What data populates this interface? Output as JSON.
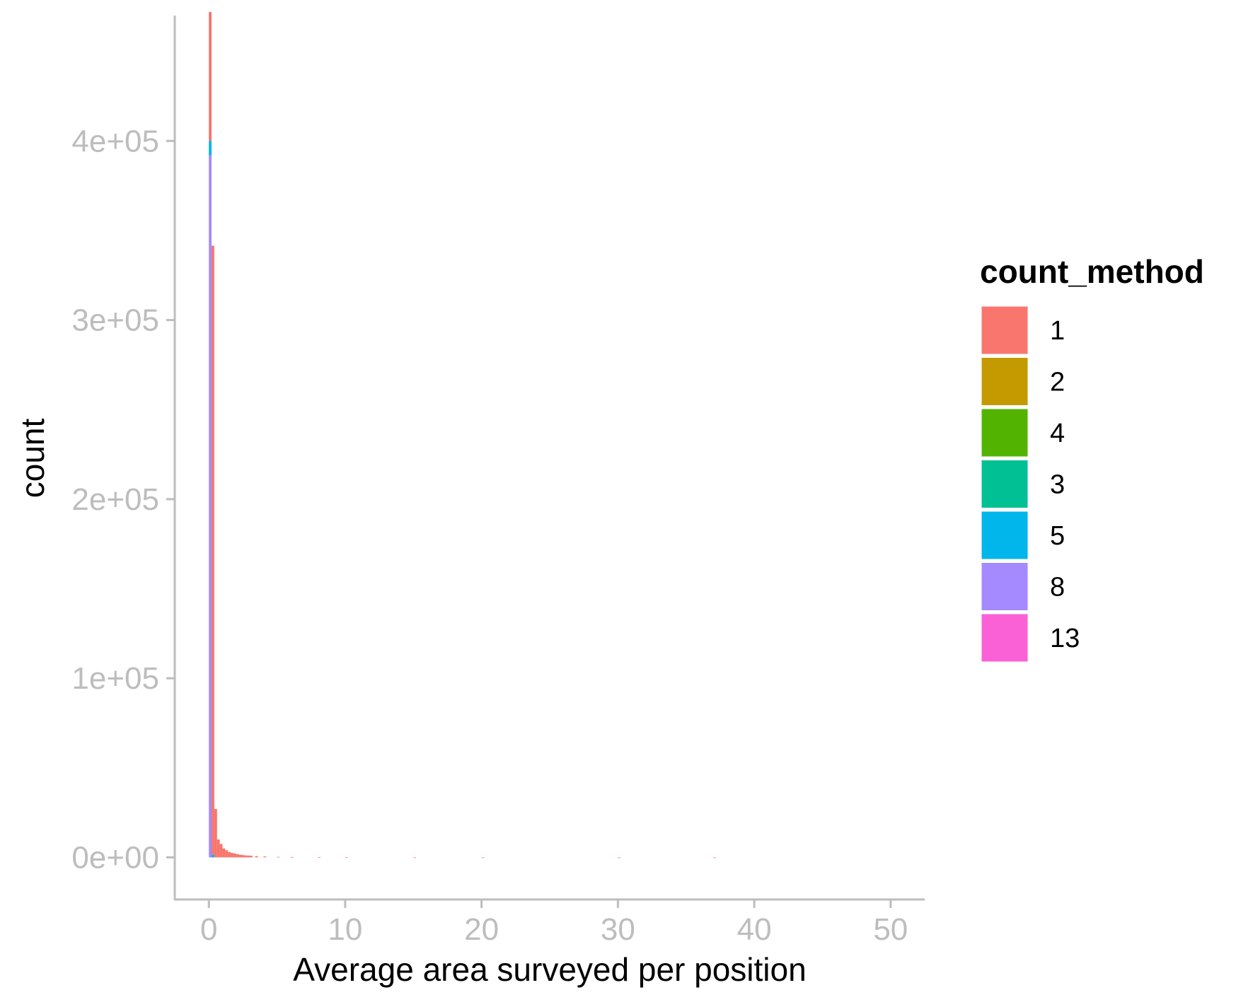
{
  "chart_data": {
    "type": "bar",
    "subtype": "stacked-histogram",
    "title": "",
    "xlabel": "Average area surveyed per position",
    "ylabel": "count",
    "xlim": [
      -2.5,
      52.5
    ],
    "ylim": [
      -23500,
      470000
    ],
    "x_ticks": [
      {
        "value": 0,
        "label": "0"
      },
      {
        "value": 10,
        "label": "10"
      },
      {
        "value": 20,
        "label": "20"
      },
      {
        "value": 30,
        "label": "30"
      },
      {
        "value": 40,
        "label": "40"
      },
      {
        "value": 50,
        "label": "50"
      }
    ],
    "y_ticks": [
      {
        "value": 0,
        "label": "0e+00"
      },
      {
        "value": 100000,
        "label": "1e+05"
      },
      {
        "value": 200000,
        "label": "2e+05"
      },
      {
        "value": 300000,
        "label": "3e+05"
      },
      {
        "value": 400000,
        "label": "4e+05"
      }
    ],
    "grid": false,
    "legend": {
      "title": "count_method",
      "position": "right",
      "items": [
        {
          "label": "1",
          "color": "#F8766D"
        },
        {
          "label": "2",
          "color": "#C49A00"
        },
        {
          "label": "4",
          "color": "#53B400"
        },
        {
          "label": "3",
          "color": "#00C094"
        },
        {
          "label": "5",
          "color": "#00B6EB"
        },
        {
          "label": "8",
          "color": "#A58AFF"
        },
        {
          "label": "13",
          "color": "#FB61D7"
        }
      ]
    },
    "bin_width": 0.2,
    "series": [
      {
        "name": "1",
        "color": "#F8766D",
        "bins": [
          [
            0.0,
            72000
          ],
          [
            0.2,
            340000
          ],
          [
            0.4,
            27000
          ],
          [
            0.6,
            10000
          ],
          [
            0.8,
            7500
          ],
          [
            1.0,
            5000
          ],
          [
            1.2,
            4000
          ],
          [
            1.4,
            3000
          ],
          [
            1.6,
            2500
          ],
          [
            1.8,
            2200
          ],
          [
            2.0,
            1800
          ],
          [
            2.2,
            1500
          ],
          [
            2.4,
            1300
          ],
          [
            2.6,
            1100
          ],
          [
            2.8,
            1000
          ],
          [
            3.0,
            900
          ],
          [
            3.4,
            700
          ],
          [
            4.0,
            500
          ],
          [
            5.0,
            300
          ],
          [
            6.0,
            200
          ],
          [
            8.0,
            100
          ],
          [
            10.0,
            60
          ],
          [
            15.0,
            30
          ],
          [
            20.0,
            15
          ],
          [
            30.0,
            8
          ],
          [
            37.0,
            3
          ]
        ]
      },
      {
        "name": "5",
        "color": "#00B6EB",
        "bins": [
          [
            0.0,
            8000
          ],
          [
            0.2,
            1500
          ]
        ]
      },
      {
        "name": "8",
        "color": "#A58AFF",
        "bins": [
          [
            0.0,
            392000
          ]
        ]
      }
    ],
    "stack_order": [
      "8",
      "5",
      "1"
    ]
  }
}
